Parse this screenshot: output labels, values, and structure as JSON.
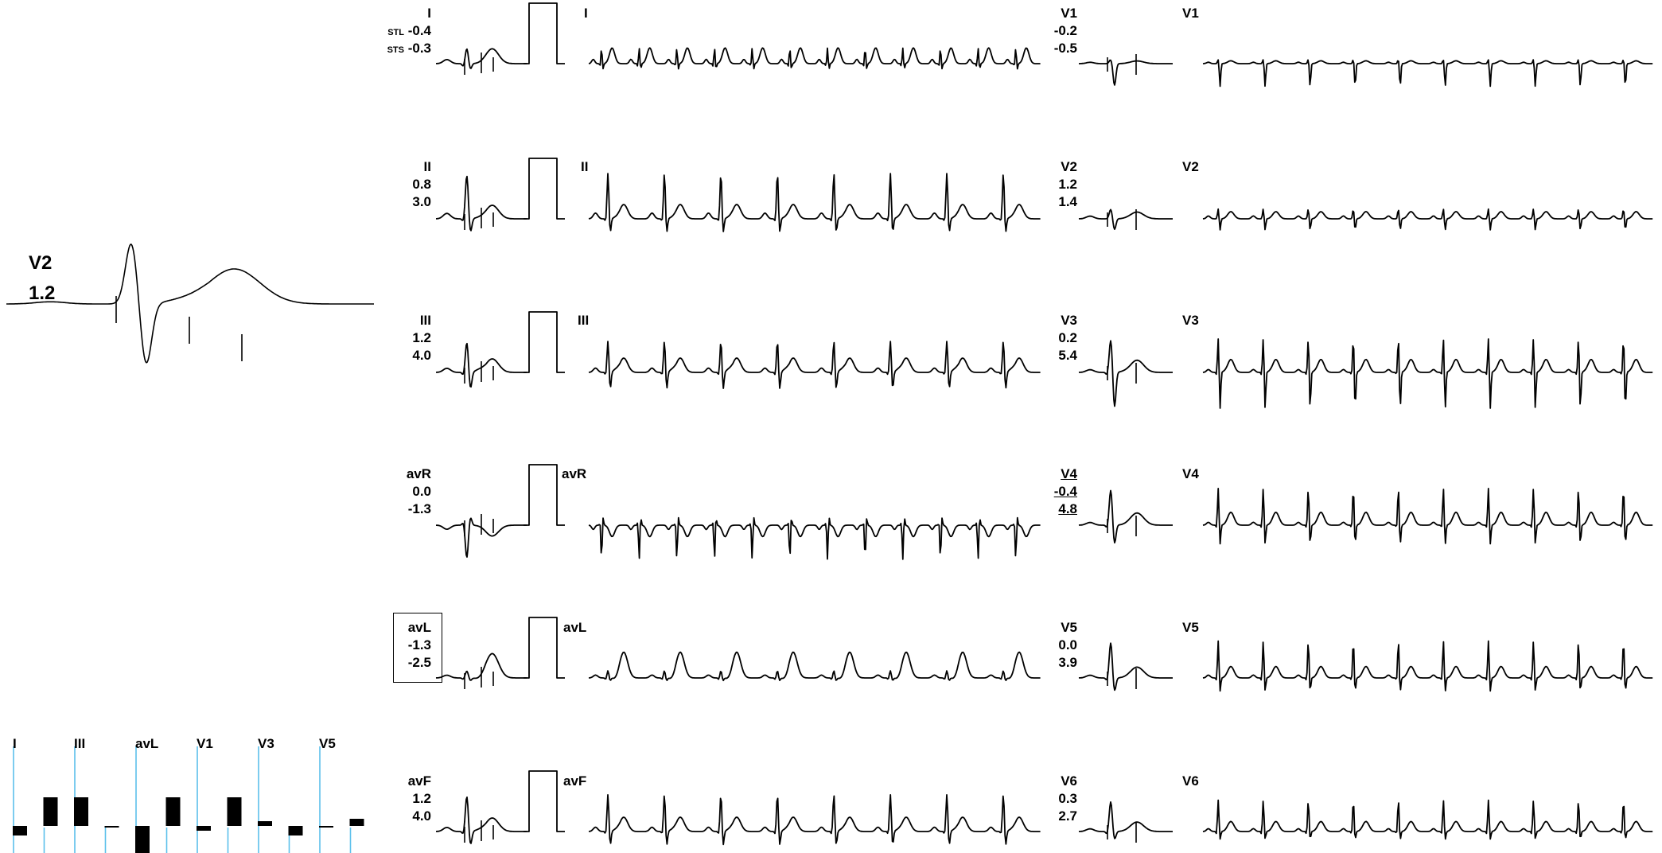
{
  "magnified": {
    "lead": "V2",
    "value": "1.2"
  },
  "limb_leads": [
    {
      "name": "I",
      "rhythm_label": "I",
      "stl_prefix": "STL",
      "sts_prefix": "STS",
      "v1": "-0.4",
      "v2": "-0.3"
    },
    {
      "name": "II",
      "rhythm_label": "II",
      "v1": "0.8",
      "v2": "3.0"
    },
    {
      "name": "III",
      "rhythm_label": "III",
      "v1": "1.2",
      "v2": "4.0"
    },
    {
      "name": "avR",
      "rhythm_label": "avR",
      "v1": "0.0",
      "v2": "-1.3"
    },
    {
      "name": "avL",
      "rhythm_label": "avL",
      "v1": "-1.3",
      "v2": "-2.5"
    },
    {
      "name": "avF",
      "rhythm_label": "avF",
      "v1": "1.2",
      "v2": "4.0"
    }
  ],
  "chest_leads": [
    {
      "name": "V1",
      "rhythm_label": "V1",
      "v1": "-0.2",
      "v2": "-0.5"
    },
    {
      "name": "V2",
      "rhythm_label": "V2",
      "v1": "1.2",
      "v2": "1.4"
    },
    {
      "name": "V3",
      "rhythm_label": "V3",
      "v1": "0.2",
      "v2": "5.4"
    },
    {
      "name": "V4",
      "rhythm_label": "V4",
      "v1": "-0.4",
      "v2": "4.8"
    },
    {
      "name": "V5",
      "rhythm_label": "V5",
      "v1": "0.0",
      "v2": "3.9"
    },
    {
      "name": "V6",
      "rhythm_label": "V6",
      "v1": "0.3",
      "v2": "2.7"
    }
  ],
  "bar_chart": {
    "labels": [
      "I",
      "III",
      "avL",
      "V1",
      "V3",
      "V5"
    ],
    "values": [
      -0.4,
      1.2,
      1.2,
      0.0,
      -1.3,
      1.2,
      -0.2,
      1.2,
      0.2,
      -0.4,
      0.0,
      0.3
    ],
    "axis_color": "#5bc0eb"
  }
}
